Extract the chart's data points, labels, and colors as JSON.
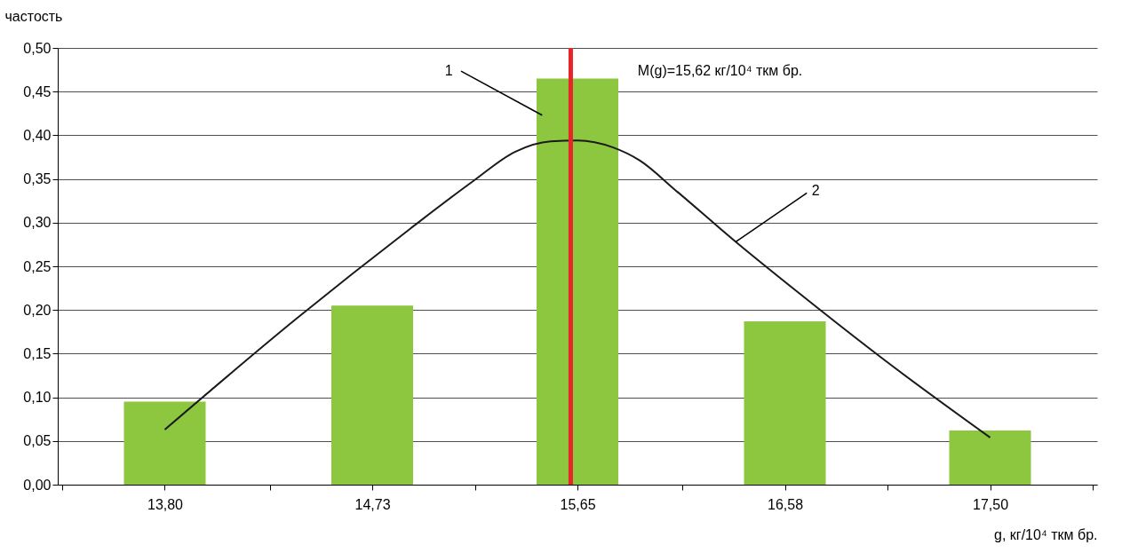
{
  "chart_data": {
    "type": "bar",
    "ylabel": "частость",
    "xlabel": "g, кг/10⁴ ткм бр.",
    "x": [
      13.8,
      14.73,
      15.65,
      16.58,
      17.5
    ],
    "series": [
      {
        "color": "#8dc63f",
        "values": [
          0.095,
          0.205,
          0.465,
          0.187,
          0.062
        ]
      },
      {
        "type": "line",
        "color": "#1a1a1a",
        "x": [
          13.8,
          14.39,
          14.9,
          15.18,
          15.37,
          15.53,
          15.65,
          15.81,
          15.93,
          16.09,
          16.36,
          16.64,
          17.03,
          17.5
        ],
        "values": [
          0.063,
          0.19,
          0.293,
          0.347,
          0.381,
          0.393,
          0.394,
          0.386,
          0.371,
          0.337,
          0.278,
          0.22,
          0.142,
          0.054
        ]
      }
    ],
    "xlim": [
      13.34,
      17.96
    ],
    "xticks": [
      {
        "value": 13.34,
        "label": null
      },
      {
        "value": 13.8,
        "label": "13,80"
      },
      {
        "value": 14.27,
        "label": null
      },
      {
        "value": 14.73,
        "label": "14,73"
      },
      {
        "value": 15.19,
        "label": null
      },
      {
        "value": 15.65,
        "label": "15,65"
      },
      {
        "value": 16.12,
        "label": null
      },
      {
        "value": 16.58,
        "label": "16,58"
      },
      {
        "value": 17.04,
        "label": null
      },
      {
        "value": 17.5,
        "label": "17,50"
      },
      {
        "value": 17.96,
        "label": null
      }
    ],
    "ylim": [
      0,
      0.5
    ],
    "yticks": [
      {
        "value": 0,
        "label": "0,00"
      },
      {
        "value": 0.05,
        "label": "0,05"
      },
      {
        "value": 0.1,
        "label": "0,10"
      },
      {
        "value": 0.15,
        "label": "0,15"
      },
      {
        "value": 0.2,
        "label": "0,20"
      },
      {
        "value": 0.25,
        "label": "0,25"
      },
      {
        "value": 0.3,
        "label": "0,30"
      },
      {
        "value": 0.35,
        "label": "0,35"
      },
      {
        "value": 0.4,
        "label": "0,40"
      },
      {
        "value": 0.45,
        "label": "0,45"
      },
      {
        "value": 0.5,
        "label": "0,50"
      }
    ],
    "ref_lines": [
      {
        "axis": "x",
        "value": 15.62,
        "color": "#e8262a"
      }
    ],
    "annotations": [
      "1",
      {
        "text": "2",
        "x": 16.36,
        "y": 0.278
      },
      "M(g)=15,62 кг/10⁴ ткм бр."
    ],
    "grid": true,
    "marker": "none",
    "line_style": "solid"
  }
}
